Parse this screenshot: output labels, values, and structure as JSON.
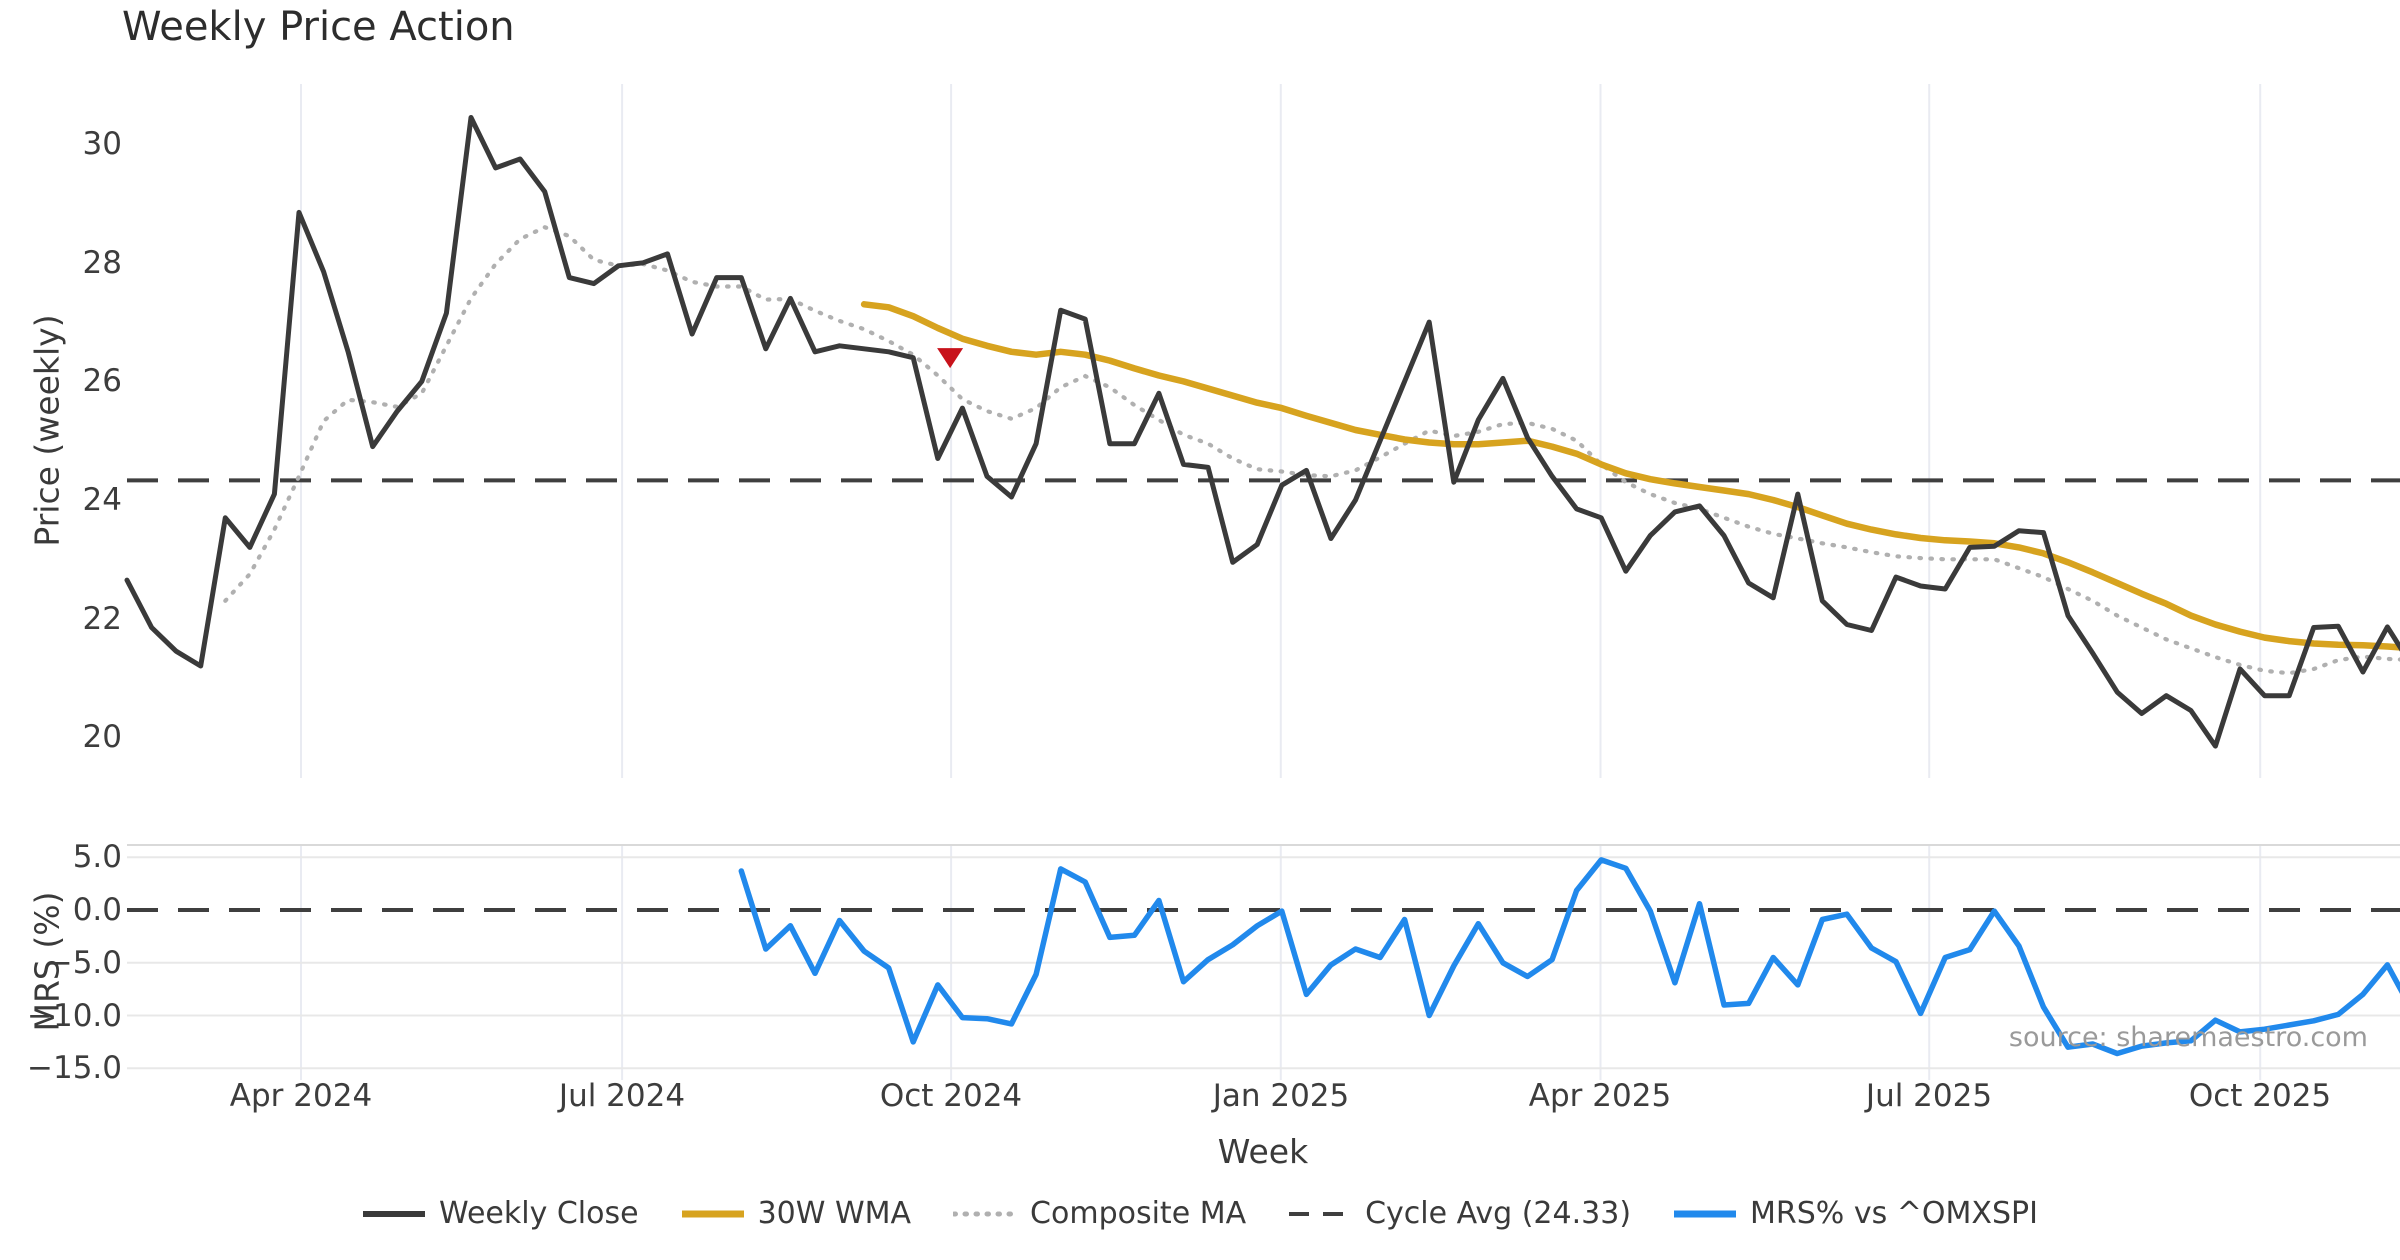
{
  "title": "Weekly Price Action",
  "xlabel": "Week",
  "source": "source: sharemaestro.com",
  "price_panel": {
    "ylabel": "Price (weekly)",
    "ticks": [
      {
        "label": "30",
        "value": 30
      },
      {
        "label": "28",
        "value": 28
      },
      {
        "label": "26",
        "value": 26
      },
      {
        "label": "24",
        "value": 24
      },
      {
        "label": "22",
        "value": 22
      },
      {
        "label": "20",
        "value": 20
      }
    ]
  },
  "mrs_panel": {
    "ylabel": "MRS (%)",
    "ticks": [
      {
        "label": "5.0",
        "value": 5
      },
      {
        "label": "0.0",
        "value": 0
      },
      {
        "label": "−5.0",
        "value": -5
      },
      {
        "label": "−10.0",
        "value": -10
      },
      {
        "label": "−15.0",
        "value": -15
      }
    ]
  },
  "legend": [
    {
      "label": "Weekly Close",
      "style": "solid",
      "color": "#3a3a3a",
      "width": 6
    },
    {
      "label": "30W WMA",
      "style": "solid",
      "color": "#d7a31f",
      "width": 7
    },
    {
      "label": "Composite MA",
      "style": "dotted",
      "color": "#b0b0b0",
      "width": 5
    },
    {
      "label": "Cycle Avg (24.33)",
      "style": "dashed",
      "color": "#3f3f3f",
      "width": 4
    },
    {
      "label": "MRS% vs ^OMXSPI",
      "style": "solid",
      "color": "#2189ec",
      "width": 7
    }
  ],
  "colors": {
    "weekly_close": "#3a3a3a",
    "wma_30w": "#d7a31f",
    "composite_ma": "#b0b0b0",
    "cycle_avg": "#3f3f3f",
    "mrs": "#2189ec",
    "signal_marker": "#c8121b"
  },
  "chart_data": {
    "type": "line",
    "title": "Weekly Price Action",
    "xlabel": "Week",
    "x_unit": "weeks from 2024-02-12 (weekly bars)",
    "x_ticks": [
      {
        "label": "Apr 2024",
        "week": 7.08
      },
      {
        "label": "Jul 2024",
        "week": 20.15
      },
      {
        "label": "Oct 2024",
        "week": 33.54
      },
      {
        "label": "Jan 2025",
        "week": 46.96
      },
      {
        "label": "Apr 2025",
        "week": 59.97
      },
      {
        "label": "Jul 2025",
        "week": 73.35
      },
      {
        "label": "Oct 2025",
        "week": 86.82
      }
    ],
    "panels": [
      {
        "name": "price",
        "ylabel": "Price (weekly)",
        "ylim": [
          19.3,
          31.0
        ],
        "grid": "vertical-only"
      },
      {
        "name": "mrs",
        "ylabel": "MRS (%)",
        "ylim": [
          -16.1,
          6.2
        ],
        "grid": "both"
      }
    ],
    "cycle_avg": 24.33,
    "mrs_zero_line": 0.0,
    "mrs_gridline_values": [
      5,
      -5,
      -10,
      -15
    ],
    "marker": {
      "name": "sell-signal",
      "symbol": "triangle-down",
      "week": 33.5,
      "price": 26.41,
      "color": "#c8121b"
    },
    "legend_position": "bottom-center",
    "series": [
      {
        "name": "Composite MA",
        "panel": "price",
        "style": "dotted",
        "color": "#b0b0b0",
        "stroke_width": 4.2,
        "start_week": 4,
        "values": [
          22.3,
          22.75,
          23.5,
          24.4,
          25.33,
          25.69,
          25.65,
          25.57,
          25.8,
          26.6,
          27.4,
          27.98,
          28.4,
          28.6,
          28.45,
          28.05,
          27.95,
          27.98,
          27.87,
          27.68,
          27.6,
          27.6,
          27.38,
          27.39,
          27.19,
          27.02,
          26.88,
          26.68,
          26.45,
          26.1,
          25.7,
          25.5,
          25.37,
          25.55,
          25.9,
          26.09,
          25.9,
          25.6,
          25.35,
          25.1,
          24.95,
          24.7,
          24.52,
          24.48,
          24.42,
          24.4,
          24.5,
          24.72,
          24.95,
          25.17,
          25.08,
          25.15,
          25.28,
          25.3,
          25.2,
          25.0,
          24.6,
          24.3,
          24.1,
          23.95,
          23.85,
          23.7,
          23.55,
          23.43,
          23.35,
          23.27,
          23.2,
          23.12,
          23.05,
          23.02,
          23.0,
          23.0,
          23.0,
          22.85,
          22.7,
          22.5,
          22.3,
          22.05,
          21.85,
          21.65,
          21.5,
          21.35,
          21.22,
          21.12,
          21.08,
          21.15,
          21.3,
          21.36,
          21.32,
          21.3
        ]
      },
      {
        "name": "30W WMA",
        "panel": "price",
        "style": "solid",
        "color": "#d7a31f",
        "stroke_width": 6.5,
        "start_week": 30,
        "values": [
          27.3,
          27.25,
          27.1,
          26.9,
          26.72,
          26.6,
          26.5,
          26.45,
          26.5,
          26.45,
          26.35,
          26.22,
          26.1,
          26.0,
          25.88,
          25.76,
          25.64,
          25.55,
          25.42,
          25.3,
          25.18,
          25.1,
          25.02,
          24.97,
          24.94,
          24.94,
          24.97,
          25.0,
          24.9,
          24.78,
          24.6,
          24.45,
          24.35,
          24.28,
          24.22,
          24.16,
          24.1,
          24.0,
          23.88,
          23.74,
          23.6,
          23.5,
          23.42,
          23.36,
          23.32,
          23.3,
          23.27,
          23.2,
          23.1,
          22.95,
          22.78,
          22.6,
          22.42,
          22.25,
          22.05,
          21.9,
          21.78,
          21.68,
          21.62,
          21.58,
          21.56,
          21.55,
          21.53,
          21.5
        ]
      },
      {
        "name": "Weekly Close",
        "panel": "price",
        "style": "solid",
        "color": "#3a3a3a",
        "stroke_width": 5,
        "start_week": 0,
        "values": [
          22.65,
          21.85,
          21.45,
          21.2,
          23.7,
          23.2,
          24.1,
          28.85,
          27.85,
          26.5,
          24.9,
          25.5,
          26.0,
          27.15,
          30.45,
          29.6,
          29.75,
          29.2,
          27.75,
          27.65,
          27.95,
          28.0,
          28.15,
          26.8,
          27.75,
          27.75,
          26.55,
          27.4,
          26.5,
          26.6,
          26.55,
          26.5,
          26.4,
          24.7,
          25.55,
          24.4,
          24.05,
          24.95,
          27.2,
          27.05,
          24.95,
          24.95,
          25.8,
          24.6,
          24.55,
          22.95,
          23.25,
          24.25,
          24.5,
          23.35,
          24.0,
          25.0,
          26.0,
          27.0,
          24.3,
          25.35,
          26.05,
          25.05,
          24.4,
          23.85,
          23.7,
          22.8,
          23.4,
          23.8,
          23.9,
          23.4,
          22.6,
          22.35,
          24.1,
          22.3,
          21.9,
          21.8,
          22.7,
          22.55,
          22.5,
          23.2,
          23.22,
          23.48,
          23.45,
          22.05,
          21.42,
          20.76,
          20.4,
          20.7,
          20.45,
          19.85,
          21.15,
          20.7,
          20.7,
          21.85,
          21.87,
          21.1,
          21.86,
          21.2
        ]
      },
      {
        "name": "MRS% vs ^OMXSPI",
        "panel": "mrs",
        "style": "solid",
        "color": "#2189ec",
        "stroke_width": 5.5,
        "start_week": 25,
        "values": [
          3.7,
          -3.7,
          -1.5,
          -6.0,
          -1.0,
          -3.9,
          -5.5,
          -12.5,
          -7.1,
          -10.2,
          -10.3,
          -10.8,
          -6.1,
          3.9,
          2.65,
          -2.6,
          -2.4,
          0.9,
          -6.8,
          -4.7,
          -3.3,
          -1.5,
          -0.1,
          -8.0,
          -5.2,
          -3.7,
          -4.5,
          -0.9,
          -10.0,
          -5.3,
          -1.3,
          -5.0,
          -6.3,
          -4.7,
          1.85,
          4.75,
          3.95,
          -0.1,
          -6.9,
          0.6,
          -9.0,
          -8.85,
          -4.5,
          -7.1,
          -0.9,
          -0.4,
          -3.6,
          -4.9,
          -9.8,
          -4.5,
          -3.75,
          -0.1,
          -3.4,
          -9.2,
          -13.0,
          -12.7,
          -13.6,
          -12.9,
          -12.6,
          -12.4,
          -10.45,
          -11.55,
          -11.3,
          -10.9,
          -10.5,
          -9.9,
          -8.0,
          -5.2,
          -9.5
        ]
      }
    ]
  }
}
